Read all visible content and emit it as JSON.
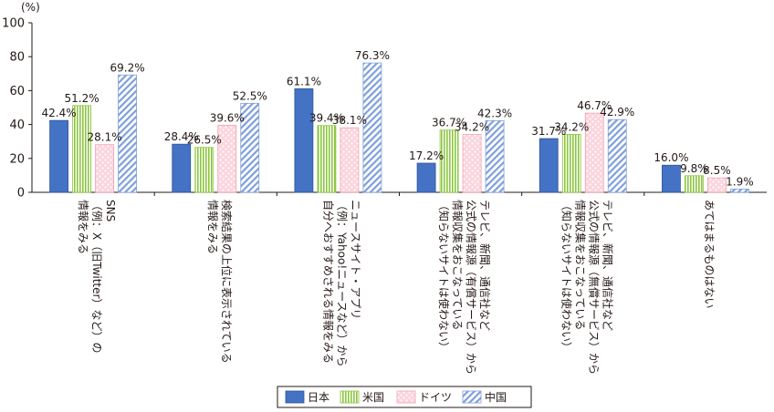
{
  "chart_data": {
    "type": "bar",
    "unit_label": "(%)",
    "ylim": [
      0,
      100
    ],
    "yticks": [
      0,
      20,
      40,
      60,
      80,
      100
    ],
    "grid": false,
    "legend_position": "bottom",
    "categories": [
      [
        "SNS",
        "（例：X（旧Twitter）など）の",
        "情報をみる"
      ],
      [
        "検索結果の上位に表示されている",
        "情報をみる"
      ],
      [
        "ニュースサイト・アプリ",
        "（例：Yahoo!ニュースなど）から",
        "自分へおすすめされる情報をみる"
      ],
      [
        "テレビ、新聞、通信社など",
        "公式の情報源（有償サービス）から",
        "情報収集をおこなっている",
        "（知らないサイトは使わない）"
      ],
      [
        "テレビ、新聞、通信社など",
        "公式の情報源（無償サービス）から",
        "情報収集をおこなっている",
        "（知らないサイトは使わない）"
      ],
      [
        "あてはまるものはない"
      ]
    ],
    "series": [
      {
        "name": "日本",
        "values": [
          42.4,
          28.4,
          61.1,
          17.2,
          31.7,
          16.0
        ],
        "labels": [
          "42.4%",
          "28.4%",
          "61.1%",
          "17.2%",
          "31.7%",
          "16.0%"
        ],
        "color": "#4472c4",
        "pattern": "solid"
      },
      {
        "name": "米国",
        "values": [
          51.2,
          26.5,
          39.4,
          36.7,
          34.2,
          9.8
        ],
        "labels": [
          "51.2%",
          "26.5%",
          "39.4%",
          "36.7%",
          "34.2%",
          "9.8%"
        ],
        "color": "#8cc63f",
        "pattern": "vertical-lines"
      },
      {
        "name": "ドイツ",
        "values": [
          28.1,
          39.6,
          38.1,
          34.2,
          46.7,
          8.5
        ],
        "labels": [
          "28.1%",
          "39.6%",
          "38.1%",
          "34.2%",
          "46.7%",
          "8.5%"
        ],
        "color": "#f5a0b4",
        "pattern": "dots"
      },
      {
        "name": "中国",
        "values": [
          69.2,
          52.5,
          76.3,
          42.3,
          42.9,
          1.9
        ],
        "labels": [
          "69.2%",
          "52.5%",
          "76.3%",
          "42.3%",
          "42.9%",
          "1.9%"
        ],
        "color": "#7f9fd9",
        "pattern": "diagonal-lines"
      }
    ]
  }
}
